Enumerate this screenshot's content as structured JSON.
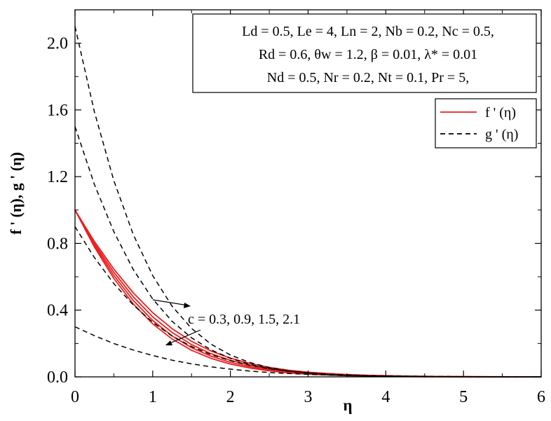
{
  "chart_data": {
    "type": "line",
    "xlabel": "η",
    "ylabel": "f ' (η), g ' (η)",
    "xlim": [
      0,
      6
    ],
    "ylim": [
      0,
      2.2
    ],
    "xticks": [
      "0",
      "1",
      "2",
      "3",
      "4",
      "5",
      "6"
    ],
    "yticks": [
      "0.0",
      "0.4",
      "0.8",
      "1.2",
      "1.6",
      "2.0"
    ],
    "grid": false,
    "legend_position": "upper-right",
    "parameters_box": [
      "Ld = 0.5, Le = 4, Ln = 2, Nb = 0.2, Nc = 0.5,",
      "Rd = 0.6, θw = 1.2, β = 0.01, λ* = 0.01",
      "Nd = 0.5, Nr = 0.2, Nt = 0.1, Pr = 5,"
    ],
    "annotation": "c = 0.3, 0.9, 1.5, 2.1",
    "legend": [
      {
        "label": "f ' (η)",
        "color": "#e8211f",
        "dash": "solid"
      },
      {
        "label": "g ' (η)",
        "color": "#000000",
        "dash": "dashed"
      }
    ],
    "x": [
      0,
      0.25,
      0.5,
      0.75,
      1,
      1.25,
      1.5,
      1.75,
      2,
      2.25,
      2.5,
      2.75,
      3,
      3.25,
      3.5,
      3.75,
      4,
      4.25,
      4.5,
      4.75,
      5,
      5.25,
      5.5,
      5.75,
      6
    ],
    "series": [
      {
        "name": "f ' (η)",
        "group": "f",
        "c": 0.3,
        "color": "#e8211f",
        "dash": "solid",
        "values": [
          1.0,
          0.811,
          0.646,
          0.504,
          0.385,
          0.289,
          0.213,
          0.155,
          0.112,
          0.08,
          0.057,
          0.04,
          0.028,
          0.02,
          0.014,
          0.01,
          0.007,
          0.005,
          0.003,
          0.002,
          0.002,
          0.001,
          0.001,
          0.0,
          0.0
        ]
      },
      {
        "name": "f ' (η)",
        "group": "f",
        "c": 0.9,
        "color": "#e8211f",
        "dash": "solid",
        "values": [
          1.0,
          0.8,
          0.627,
          0.48,
          0.36,
          0.266,
          0.193,
          0.139,
          0.099,
          0.07,
          0.049,
          0.034,
          0.024,
          0.016,
          0.011,
          0.008,
          0.005,
          0.004,
          0.003,
          0.002,
          0.001,
          0.001,
          0.0,
          0.0,
          0.0
        ]
      },
      {
        "name": "f ' (η)",
        "group": "f",
        "c": 1.5,
        "color": "#e8211f",
        "dash": "solid",
        "values": [
          1.0,
          0.789,
          0.608,
          0.458,
          0.338,
          0.245,
          0.175,
          0.124,
          0.087,
          0.061,
          0.042,
          0.029,
          0.02,
          0.014,
          0.009,
          0.006,
          0.004,
          0.003,
          0.002,
          0.001,
          0.001,
          0.0,
          0.0,
          0.0,
          0.0
        ]
      },
      {
        "name": "f ' (η)",
        "group": "f",
        "c": 2.1,
        "color": "#e8211f",
        "dash": "solid",
        "values": [
          1.0,
          0.778,
          0.59,
          0.437,
          0.318,
          0.227,
          0.159,
          0.111,
          0.077,
          0.053,
          0.036,
          0.024,
          0.016,
          0.011,
          0.007,
          0.005,
          0.003,
          0.002,
          0.001,
          0.001,
          0.0,
          0.0,
          0.0,
          0.0,
          0.0
        ]
      },
      {
        "name": "g ' (η)",
        "group": "g",
        "c": 0.3,
        "color": "#000000",
        "dash": "dashed",
        "values": [
          0.3,
          0.247,
          0.2,
          0.161,
          0.128,
          0.1,
          0.078,
          0.06,
          0.046,
          0.035,
          0.026,
          0.02,
          0.015,
          0.011,
          0.008,
          0.006,
          0.004,
          0.003,
          0.002,
          0.002,
          0.001,
          0.001,
          0.0,
          0.0,
          0.0
        ]
      },
      {
        "name": "g ' (η)",
        "group": "g",
        "c": 0.9,
        "color": "#000000",
        "dash": "dashed",
        "values": [
          0.9,
          0.715,
          0.559,
          0.431,
          0.327,
          0.245,
          0.182,
          0.133,
          0.097,
          0.069,
          0.049,
          0.035,
          0.024,
          0.017,
          0.012,
          0.008,
          0.006,
          0.004,
          0.003,
          0.002,
          0.001,
          0.001,
          0.0,
          0.0,
          0.0
        ]
      },
      {
        "name": "g ' (η)",
        "group": "g",
        "c": 1.5,
        "color": "#000000",
        "dash": "dashed",
        "values": [
          1.5,
          1.153,
          0.87,
          0.643,
          0.467,
          0.333,
          0.234,
          0.162,
          0.111,
          0.075,
          0.05,
          0.033,
          0.022,
          0.014,
          0.009,
          0.006,
          0.004,
          0.003,
          0.002,
          0.001,
          0.001,
          0.0,
          0.0,
          0.0,
          0.0
        ]
      },
      {
        "name": "g ' (η)",
        "group": "g",
        "c": 2.1,
        "color": "#000000",
        "dash": "dashed",
        "values": [
          2.1,
          1.588,
          1.176,
          0.853,
          0.607,
          0.423,
          0.29,
          0.196,
          0.131,
          0.086,
          0.056,
          0.036,
          0.023,
          0.015,
          0.009,
          0.006,
          0.004,
          0.002,
          0.001,
          0.001,
          0.0,
          0.0,
          0.0,
          0.0,
          0.0
        ]
      }
    ]
  }
}
